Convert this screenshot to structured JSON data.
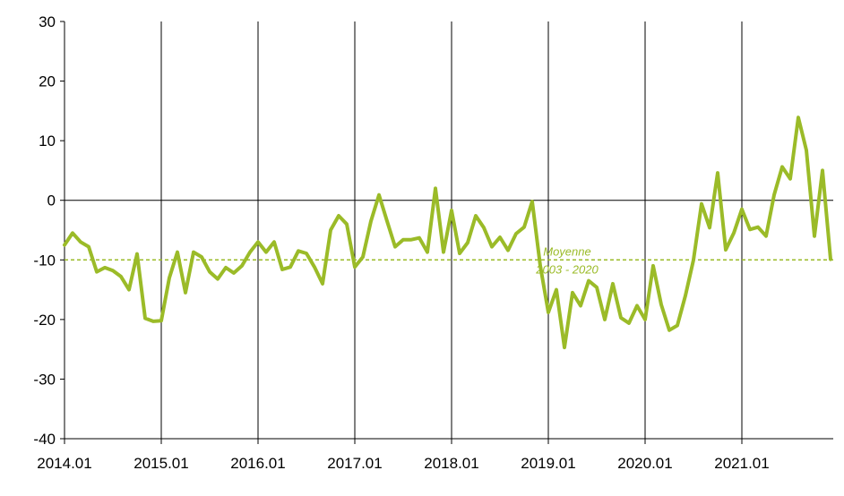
{
  "chart_data": {
    "type": "line",
    "title": "",
    "xlabel": "",
    "ylabel": "",
    "ylim": [
      -40,
      30
    ],
    "yticks": [
      30,
      20,
      10,
      0,
      -10,
      -20,
      -30,
      -40
    ],
    "xtick_labels": [
      "2014.01",
      "2015.01",
      "2016.01",
      "2017.01",
      "2018.01",
      "2019.01",
      "2020.01",
      "2021.01"
    ],
    "grid": "vertical lines at each January",
    "line_color": "#9bbb28",
    "series": [
      {
        "values": [
          -7.5,
          -5.5,
          -7,
          -7.8,
          -12,
          -11.3,
          -11.8,
          -12.8,
          -15,
          -9,
          -19.8,
          -20.3,
          -20.2,
          -13,
          -8.7,
          -15.5,
          -8.7,
          -9.5,
          -12,
          -13.2,
          -11.3,
          -12.2,
          -11,
          -8.7,
          -7,
          -8.7,
          -7,
          -11.6,
          -11.2,
          -8.5,
          -8.9,
          -11.2,
          -14,
          -5,
          -2.6,
          -4,
          -11.2,
          -9.5,
          -3.5,
          0.9,
          -3.5,
          -7.8,
          -6.6,
          -6.6,
          -6.3,
          -8.7,
          2,
          -8.7,
          -1.7,
          -8.9,
          -7.1,
          -2.6,
          -4.6,
          -7.8,
          -6.2,
          -8.4,
          -5.6,
          -4.5,
          -0.2,
          -11,
          -18.8,
          -15,
          -24.7,
          -15.5,
          -17.7,
          -13.5,
          -14.6,
          -20,
          -14,
          -19.7,
          -20.6,
          -17.7,
          -20,
          -11,
          -17.5,
          -21.8,
          -21,
          -16,
          -10,
          -0.6,
          -4.6,
          4.6,
          -8.3,
          -5.5,
          -1.5,
          -4.9,
          -4.5,
          -6,
          0.9,
          5.6,
          3.6,
          13.9,
          8.4,
          -6,
          5,
          -9.9
        ]
      }
    ],
    "reference_line": {
      "value": -10,
      "label_line1": "Moyenne",
      "label_line2": "2003 - 2020"
    }
  }
}
